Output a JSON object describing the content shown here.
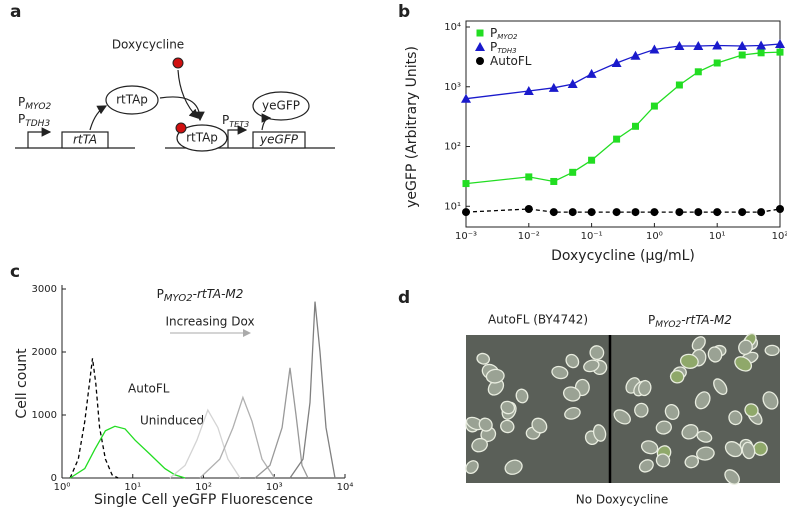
{
  "panel_labels": [
    "a",
    "b",
    "c",
    "d"
  ],
  "diagram": {
    "inducer": "Doxycycline",
    "protein": "rtTAp",
    "protein_bound": "rtTAp",
    "reporter_protein": "yeGFP",
    "promoters": [
      [
        "P",
        "MYO2"
      ],
      [
        "P",
        "TDH3"
      ]
    ],
    "gene": "rtTA",
    "reporter_promoter": [
      "P",
      "TET3"
    ],
    "reporter_gene": "yeGFP"
  },
  "chart_data": [
    {
      "type": "line",
      "xscale": "log",
      "yscale": "log",
      "legend": "upper left",
      "xlabel": "Doxycycline (µg/mL)",
      "ylabel": "yeGFP (Arbitrary Units)",
      "x": [
        0.001,
        0.01,
        0.025,
        0.05,
        0.1,
        0.25,
        0.5,
        1,
        2.5,
        5,
        10,
        25,
        50,
        100
      ],
      "xlim": [
        0.001,
        100
      ],
      "xticks": [
        {
          "value": 0.001,
          "label": "10⁻³"
        },
        {
          "value": 0.01,
          "label": "10⁻²"
        },
        {
          "value": 0.1,
          "label": "10⁻¹"
        },
        {
          "value": 1,
          "label": "10⁰"
        },
        {
          "value": 10,
          "label": "10¹"
        },
        {
          "value": 100,
          "label": "10²"
        }
      ],
      "ylim": [
        4.5,
        10000
      ],
      "yticks": [
        {
          "value": 10,
          "label": "10¹"
        },
        {
          "value": 100,
          "label": "10²"
        },
        {
          "value": 1000,
          "label": "10³"
        },
        {
          "value": 10000,
          "label": "10⁴"
        }
      ],
      "series": [
        {
          "name": [
            "P",
            "MYO2"
          ],
          "color": "#22dd22",
          "marker": "square",
          "linestyle": "solid",
          "values": [
            24,
            31,
            26,
            37,
            59,
            133,
            218,
            475,
            1070,
            1780,
            2500,
            3400,
            3700,
            3800
          ]
        },
        {
          "name": [
            "P",
            "TDH3"
          ],
          "color": "#1a1acc",
          "marker": "triangle",
          "linestyle": "solid",
          "values": [
            630,
            850,
            960,
            1110,
            1640,
            2500,
            3300,
            4200,
            4800,
            4800,
            4900,
            4800,
            4900,
            5200
          ]
        },
        {
          "name": [
            "AutoFL"
          ],
          "color": "#000000",
          "marker": "circle",
          "linestyle": "dashed",
          "values": [
            8,
            9,
            8,
            8,
            8,
            8,
            8,
            8,
            8,
            8,
            8,
            8,
            8,
            9
          ]
        }
      ]
    },
    {
      "type": "line",
      "xscale": "log",
      "yscale": "linear",
      "title": [
        "P",
        "MYO2",
        "-rtTA-M2"
      ],
      "xlabel": "Single Cell yeGFP Fluorescence",
      "ylabel": "Cell count",
      "annotation": "Increasing Dox",
      "xlim": [
        1,
        10000
      ],
      "xticks": [
        {
          "value": 1,
          "label": "10⁰"
        },
        {
          "value": 10,
          "label": "10¹"
        },
        {
          "value": 100,
          "label": "10²"
        },
        {
          "value": 1000,
          "label": "10³"
        },
        {
          "value": 10000,
          "label": "10⁴"
        }
      ],
      "ylim": [
        0,
        3000
      ],
      "yticks": [
        0,
        1000,
        2000,
        3000
      ],
      "series": [
        {
          "name": "AutoFL",
          "color": "#000000",
          "linestyle": "dashed",
          "x": [
            1.3,
            1.7,
            2.1,
            2.5,
            2.7,
            3.0,
            3.4,
            4.1,
            5.1,
            6.2
          ],
          "values": [
            0,
            300,
            900,
            1600,
            1900,
            1500,
            800,
            300,
            50,
            0
          ]
        },
        {
          "name": "Uninduced",
          "color": "#22dd22",
          "linestyle": "solid",
          "x": [
            1.3,
            2.1,
            2.9,
            4.1,
            5.6,
            7.8,
            10.8,
            17.5,
            28.5,
            39.5,
            54.9
          ],
          "values": [
            0,
            150,
            450,
            750,
            820,
            780,
            600,
            380,
            150,
            50,
            0
          ]
        },
        {
          "color": "#d4d4d4",
          "linestyle": "solid",
          "x": [
            33.5,
            54.9,
            80.8,
            115,
            160,
            221,
            329
          ],
          "values": [
            0,
            200,
            600,
            1080,
            800,
            300,
            0
          ]
        },
        {
          "color": "#b0b0b0",
          "linestyle": "solid",
          "x": [
            89,
            170,
            261,
            361,
            485,
            672,
            1010
          ],
          "values": [
            0,
            300,
            800,
            1280,
            900,
            300,
            0
          ]
        },
        {
          "color": "#999999",
          "linestyle": "solid",
          "x": [
            536,
            868,
            1290,
            1670,
            2030,
            2470,
            3000
          ],
          "values": [
            0,
            200,
            800,
            1750,
            1000,
            200,
            0
          ]
        },
        {
          "color": "#808080",
          "linestyle": "solid",
          "x": [
            1670,
            2550,
            3200,
            3770,
            4430,
            5390,
            7230
          ],
          "values": [
            0,
            300,
            1200,
            2800,
            2000,
            800,
            0
          ]
        }
      ]
    }
  ],
  "micrograph": {
    "labels": [
      "AutoFL (BY4742)",
      [
        "P",
        "MYO2",
        "-rtTA-M2"
      ]
    ],
    "caption": "No Doxycycline"
  }
}
